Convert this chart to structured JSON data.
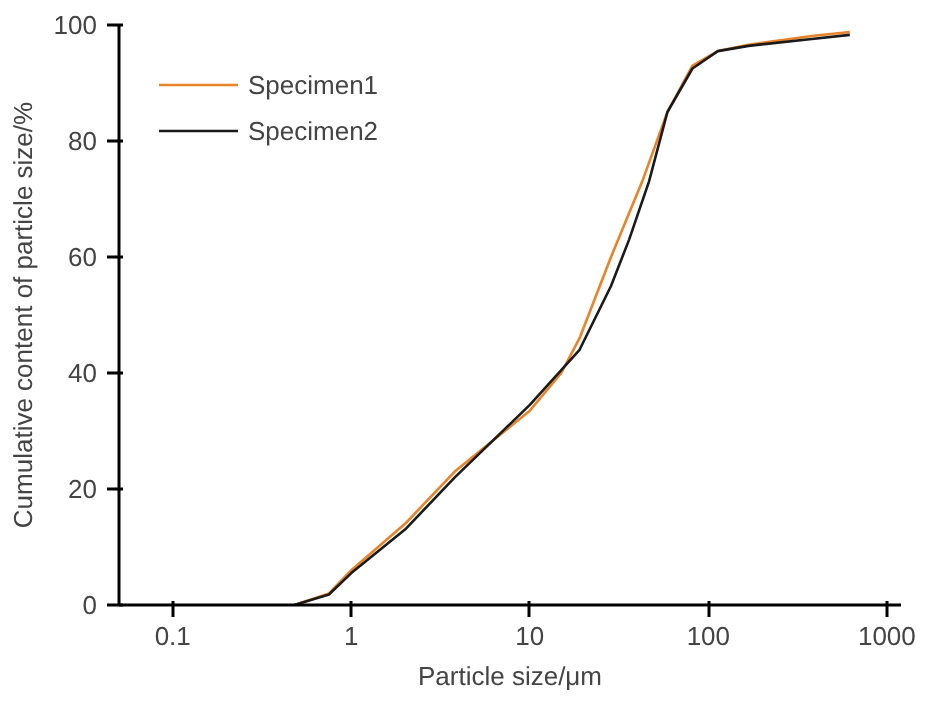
{
  "chart_data": {
    "type": "line",
    "xlabel": "Particle size/μm",
    "ylabel": "Cumulative content of particle size/%",
    "log": "x",
    "xlim": [
      0.05,
      1200
    ],
    "xticks": [
      0.1,
      1,
      10,
      100,
      1000
    ],
    "ylim": [
      0,
      100
    ],
    "yticks": [
      0,
      20,
      40,
      60,
      80,
      100
    ],
    "grid": false,
    "legend": "top left",
    "line_style": "solid",
    "marker": "none",
    "series": [
      {
        "name": "Specimen1",
        "color": "#e8832a",
        "x": [
          0.48,
          0.75,
          1,
          2,
          3.8,
          10,
          15,
          19,
          28.5,
          42.6,
          59,
          81.5,
          113,
          168,
          380,
          620
        ],
        "values": [
          0,
          2,
          6,
          14,
          23,
          33.5,
          40,
          46,
          60,
          73,
          85,
          93,
          95.5,
          96.6,
          98.1,
          98.8
        ]
      },
      {
        "name": "Specimen2",
        "color": "#1a1a1a",
        "x": [
          0.48,
          0.75,
          1,
          2,
          3.8,
          10,
          15,
          19,
          28.5,
          36,
          46.5,
          59,
          81.5,
          113,
          168,
          380,
          620
        ],
        "values": [
          0,
          1.8,
          5.5,
          13,
          22,
          34.5,
          40.5,
          44,
          55,
          63,
          73,
          85,
          92.5,
          95.5,
          96.4,
          97.6,
          98.3
        ]
      }
    ]
  }
}
